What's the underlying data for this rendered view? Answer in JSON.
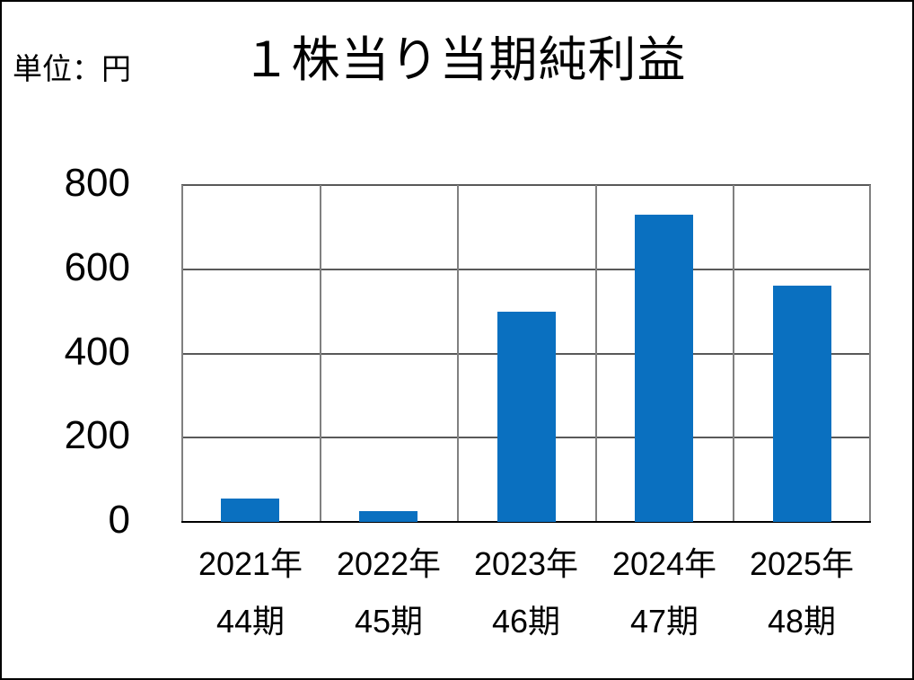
{
  "chart_data": {
    "type": "bar",
    "title": "１株当り当期純利益",
    "unit_label": "単位：円",
    "categories": [
      "2021年",
      "2022年",
      "2023年",
      "2024年",
      "2025年"
    ],
    "category_sublabels": [
      "44期",
      "45期",
      "46期",
      "47期",
      "48期"
    ],
    "values": [
      55,
      25,
      500,
      730,
      560
    ],
    "ylim": [
      0,
      800
    ],
    "yticks": [
      0,
      200,
      400,
      600,
      800
    ],
    "grid": true,
    "legend_position": "none",
    "colors": {
      "bar": "#0a70c0",
      "grid_horizontal": "#595959",
      "grid_vertical": "#808080",
      "axis": "#000000",
      "frame_border": "#000000",
      "text": "#000000",
      "background": "#ffffff"
    }
  }
}
